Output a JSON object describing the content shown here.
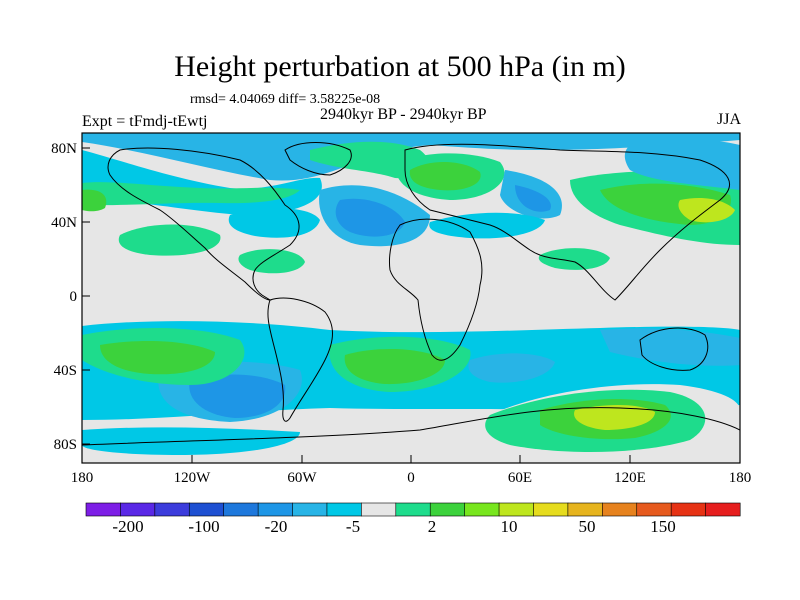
{
  "title": "Height perturbation at 500 hPa (in m)",
  "stats": "rmsd= 4.04069  diff= 3.58225e-08",
  "expt": "Expt = tFmdj-tEwtj",
  "period": "2940kyr BP - 2940kyr BP",
  "season": "JJA",
  "lat_labels": [
    "80N",
    "40N",
    "0",
    "40S",
    "80S"
  ],
  "lon_labels": [
    "180",
    "120W",
    "60W",
    "0",
    "60E",
    "120E",
    "180"
  ],
  "colorbar": {
    "labels": [
      "-200",
      "-100",
      "-20",
      "-5",
      "2",
      "10",
      "50",
      "150"
    ],
    "colors": [
      "#7d1ee6",
      "#5a28e6",
      "#3c3cdc",
      "#1e50d2",
      "#1e78dc",
      "#1e96e6",
      "#28b4e6",
      "#00c8e6",
      "#e6e6e6",
      "#1edc8c",
      "#3cd23c",
      "#78e61e",
      "#bee61e",
      "#e6dc1e",
      "#e6b41e",
      "#e6821e",
      "#e65a1e",
      "#e63214",
      "#e61e1e"
    ]
  }
}
